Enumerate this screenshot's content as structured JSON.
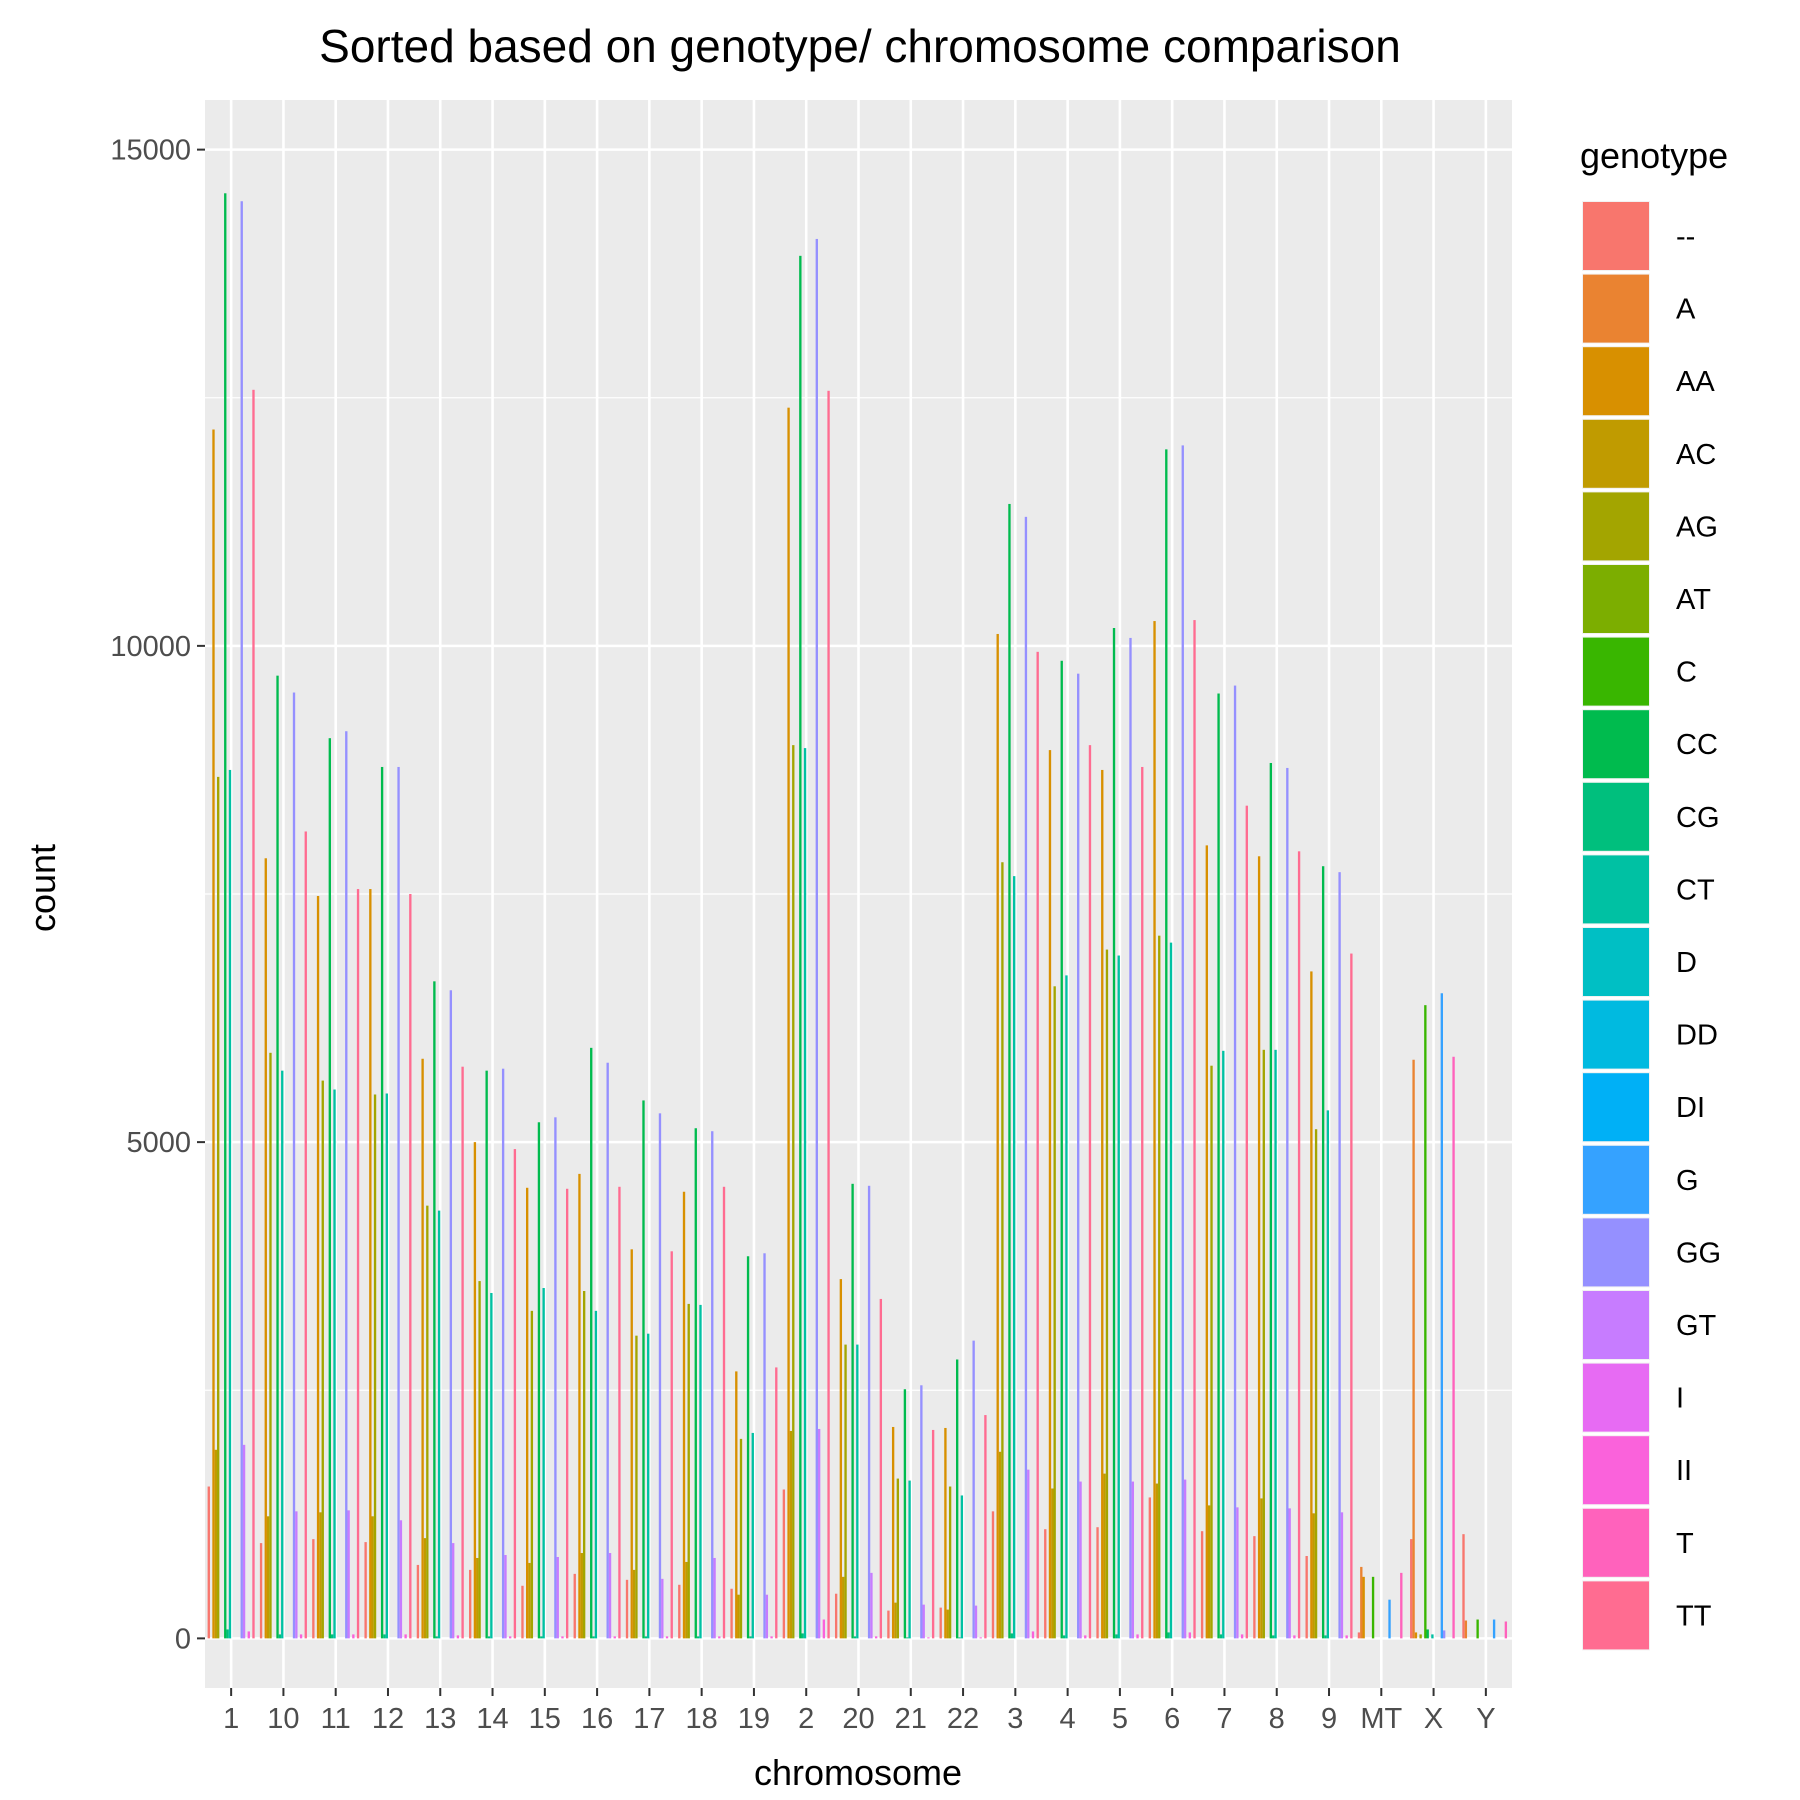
{
  "chart_data": {
    "type": "bar",
    "title": "Sorted based on genotype/ chromosome comparison",
    "xlabel": "chromosome",
    "ylabel": "count",
    "ylim": [
      -500,
      15500
    ],
    "yticks": [
      0,
      5000,
      10000,
      15000
    ],
    "grid": true,
    "legend_position": "right",
    "legend_title": "genotype",
    "categories": [
      "1",
      "10",
      "11",
      "12",
      "13",
      "14",
      "15",
      "16",
      "17",
      "18",
      "19",
      "2",
      "20",
      "21",
      "22",
      "3",
      "4",
      "5",
      "6",
      "7",
      "8",
      "9",
      "MT",
      "X",
      "Y"
    ],
    "series": [
      {
        "name": "--",
        "color": "#F8766D",
        "values": [
          1530,
          960,
          1000,
          970,
          740,
          690,
          530,
          650,
          590,
          540,
          500,
          1500,
          450,
          280,
          310,
          1280,
          1100,
          1120,
          1420,
          1080,
          1030,
          830,
          60,
          1000,
          1050
        ]
      },
      {
        "name": "A",
        "color": "#EA8331",
        "values": [
          0,
          0,
          0,
          0,
          0,
          0,
          0,
          0,
          0,
          0,
          0,
          0,
          0,
          0,
          0,
          0,
          0,
          0,
          0,
          0,
          0,
          0,
          720,
          5830,
          180
        ]
      },
      {
        "name": "AA",
        "color": "#D89000",
        "values": [
          12180,
          7860,
          7480,
          7550,
          5840,
          5000,
          4540,
          4680,
          3920,
          4500,
          2690,
          12400,
          3620,
          2130,
          2120,
          10120,
          8950,
          8750,
          10250,
          7990,
          7880,
          6720,
          620,
          60,
          0
        ]
      },
      {
        "name": "AC",
        "color": "#C09B00",
        "values": [
          1900,
          1230,
          1270,
          1230,
          1010,
          810,
          760,
          860,
          690,
          770,
          440,
          2090,
          620,
          360,
          290,
          1880,
          1510,
          1660,
          1560,
          1340,
          1410,
          1260,
          0,
          0,
          0
        ]
      },
      {
        "name": "AG",
        "color": "#A3A500",
        "values": [
          8680,
          5900,
          5620,
          5480,
          4360,
          3600,
          3300,
          3500,
          3050,
          3370,
          2010,
          9000,
          2960,
          1610,
          1530,
          7820,
          6570,
          6940,
          7080,
          5770,
          5930,
          5130,
          0,
          40,
          0
        ]
      },
      {
        "name": "AT",
        "color": "#7CAE00",
        "values": [
          0,
          0,
          0,
          0,
          0,
          0,
          0,
          0,
          0,
          0,
          0,
          0,
          0,
          0,
          0,
          0,
          0,
          0,
          0,
          0,
          0,
          0,
          0,
          0,
          0
        ]
      },
      {
        "name": "C",
        "color": "#39B600",
        "values": [
          0,
          0,
          0,
          0,
          0,
          0,
          0,
          0,
          0,
          0,
          0,
          0,
          0,
          0,
          0,
          0,
          0,
          0,
          0,
          0,
          0,
          0,
          620,
          6380,
          190
        ]
      },
      {
        "name": "CC",
        "color": "#00BB4E",
        "values": [
          14560,
          9700,
          9070,
          8780,
          6620,
          5720,
          5200,
          5950,
          5420,
          5140,
          3850,
          13930,
          4580,
          2510,
          2810,
          11430,
          9850,
          10180,
          11980,
          9520,
          8820,
          7780,
          0,
          90,
          0
        ]
      },
      {
        "name": "CG",
        "color": "#00BF7D",
        "values": [
          90,
          40,
          40,
          40,
          20,
          20,
          20,
          20,
          20,
          20,
          20,
          50,
          20,
          10,
          10,
          50,
          30,
          40,
          60,
          40,
          30,
          30,
          0,
          0,
          0
        ]
      },
      {
        "name": "CT",
        "color": "#00C1A3",
        "values": [
          8750,
          5720,
          5530,
          5490,
          4310,
          3480,
          3530,
          3300,
          3070,
          3360,
          2070,
          8970,
          2960,
          1590,
          1440,
          7680,
          6680,
          6880,
          7010,
          5920,
          5930,
          5320,
          0,
          40,
          0
        ]
      },
      {
        "name": "D",
        "color": "#00BFC4",
        "values": [
          0,
          0,
          0,
          0,
          0,
          0,
          0,
          0,
          0,
          0,
          0,
          0,
          0,
          0,
          0,
          0,
          0,
          0,
          0,
          0,
          0,
          0,
          0,
          0,
          0
        ]
      },
      {
        "name": "DD",
        "color": "#00BAE0",
        "values": [
          0,
          0,
          0,
          0,
          0,
          0,
          0,
          0,
          0,
          0,
          0,
          0,
          0,
          0,
          0,
          0,
          0,
          0,
          0,
          0,
          0,
          0,
          0,
          0,
          0
        ]
      },
      {
        "name": "DI",
        "color": "#00B0F6",
        "values": [
          0,
          0,
          0,
          0,
          0,
          0,
          0,
          0,
          0,
          0,
          0,
          0,
          0,
          0,
          0,
          0,
          0,
          0,
          0,
          0,
          0,
          0,
          0,
          0,
          0
        ]
      },
      {
        "name": "G",
        "color": "#35A2FF",
        "values": [
          0,
          0,
          0,
          0,
          0,
          0,
          0,
          0,
          0,
          0,
          0,
          0,
          0,
          0,
          0,
          0,
          0,
          0,
          0,
          0,
          0,
          0,
          390,
          6500,
          190
        ]
      },
      {
        "name": "GG",
        "color": "#9590FF",
        "values": [
          14480,
          9530,
          9140,
          8780,
          6530,
          5740,
          5250,
          5800,
          5290,
          5110,
          3880,
          14100,
          4560,
          2550,
          3000,
          11300,
          9720,
          10080,
          12020,
          9600,
          8770,
          7720,
          0,
          80,
          0
        ]
      },
      {
        "name": "GT",
        "color": "#C77CFF",
        "values": [
          1950,
          1280,
          1290,
          1190,
          960,
          840,
          820,
          860,
          600,
          810,
          440,
          2110,
          660,
          340,
          330,
          1700,
          1580,
          1580,
          1600,
          1320,
          1310,
          1270,
          0,
          0,
          0
        ]
      },
      {
        "name": "I",
        "color": "#E76BF3",
        "values": [
          0,
          0,
          0,
          0,
          0,
          0,
          0,
          0,
          0,
          0,
          0,
          0,
          0,
          0,
          0,
          0,
          0,
          0,
          0,
          0,
          0,
          0,
          0,
          0,
          0
        ]
      },
      {
        "name": "II",
        "color": "#FA62DB",
        "values": [
          70,
          40,
          40,
          40,
          30,
          20,
          20,
          20,
          20,
          20,
          20,
          190,
          20,
          10,
          10,
          70,
          30,
          40,
          60,
          40,
          30,
          30,
          0,
          0,
          0
        ]
      },
      {
        "name": "T",
        "color": "#FF62BC",
        "values": [
          0,
          0,
          0,
          0,
          0,
          0,
          0,
          0,
          0,
          0,
          0,
          0,
          0,
          0,
          0,
          0,
          0,
          0,
          0,
          0,
          0,
          0,
          660,
          5860,
          170
        ]
      },
      {
        "name": "TT",
        "color": "#FF6C91",
        "values": [
          12580,
          8130,
          7550,
          7500,
          5760,
          4930,
          4530,
          4550,
          3900,
          4550,
          2730,
          12570,
          3420,
          2100,
          2250,
          9940,
          9000,
          8780,
          10260,
          8390,
          7930,
          6900,
          0,
          0,
          0
        ]
      }
    ]
  }
}
